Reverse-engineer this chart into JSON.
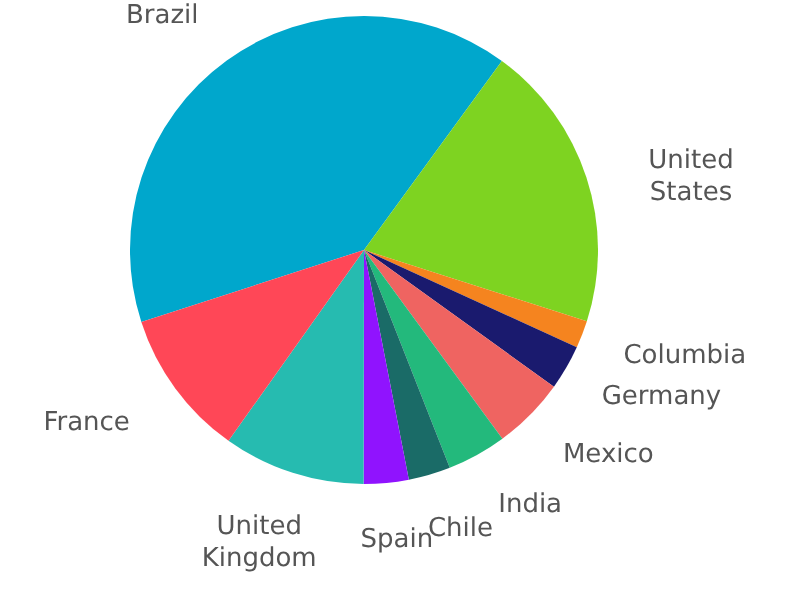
{
  "chart_data": {
    "type": "pie",
    "categories": [
      "Brazil",
      "United States",
      "Columbia",
      "Germany",
      "Mexico",
      "India",
      "Chile",
      "Spain",
      "United Kingdom",
      "France"
    ],
    "values": [
      40.0,
      19.9,
      1.9,
      3.1,
      5.0,
      4.1,
      2.9,
      3.1,
      9.8,
      10.2
    ],
    "colors": [
      "#00a7cc",
      "#7ed321",
      "#f5841f",
      "#1a1a6e",
      "#ef6461",
      "#23b97c",
      "#1a6b67",
      "#9013fe",
      "#26bbb0",
      "#ff4757"
    ]
  }
}
